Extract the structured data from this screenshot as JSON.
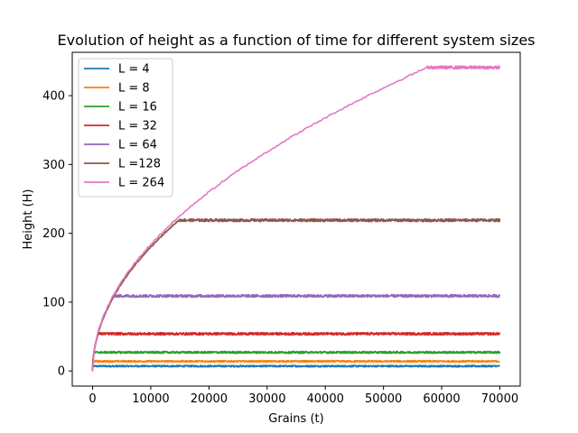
{
  "chart_data": {
    "type": "line",
    "title": "Evolution of height as a function of time for different system sizes",
    "xlabel": "Grains (t)",
    "ylabel": "Height (H)",
    "xlim": [
      -3500,
      73500
    ],
    "ylim": [
      -22,
      463
    ],
    "xticks": [
      0,
      10000,
      20000,
      30000,
      40000,
      50000,
      60000,
      70000
    ],
    "yticks": [
      0,
      100,
      200,
      300,
      400
    ],
    "grid": false,
    "legend_position": "top-left",
    "x_max": 70000,
    "series": [
      {
        "name": "L = 4",
        "color": "#1f77b4",
        "saturation_height": 7,
        "crossover_time": 20,
        "noise": 1.2
      },
      {
        "name": "L = 8",
        "color": "#ff7f0e",
        "saturation_height": 14,
        "crossover_time": 70,
        "noise": 1.3
      },
      {
        "name": "L = 16",
        "color": "#2ca02c",
        "saturation_height": 27,
        "crossover_time": 260,
        "noise": 1.5
      },
      {
        "name": "L = 32",
        "color": "#d62728",
        "saturation_height": 54,
        "crossover_time": 950,
        "noise": 1.8
      },
      {
        "name": "L = 64",
        "color": "#9467bd",
        "saturation_height": 109,
        "crossover_time": 3700,
        "noise": 2.0
      },
      {
        "name": "L =128",
        "color": "#8c564b",
        "saturation_height": 219,
        "crossover_time": 14800,
        "noise": 2.0
      },
      {
        "name": "L = 264",
        "color": "#e377c2",
        "saturation_height": 441,
        "crossover_time": 57500,
        "noise": 2.2
      }
    ]
  }
}
